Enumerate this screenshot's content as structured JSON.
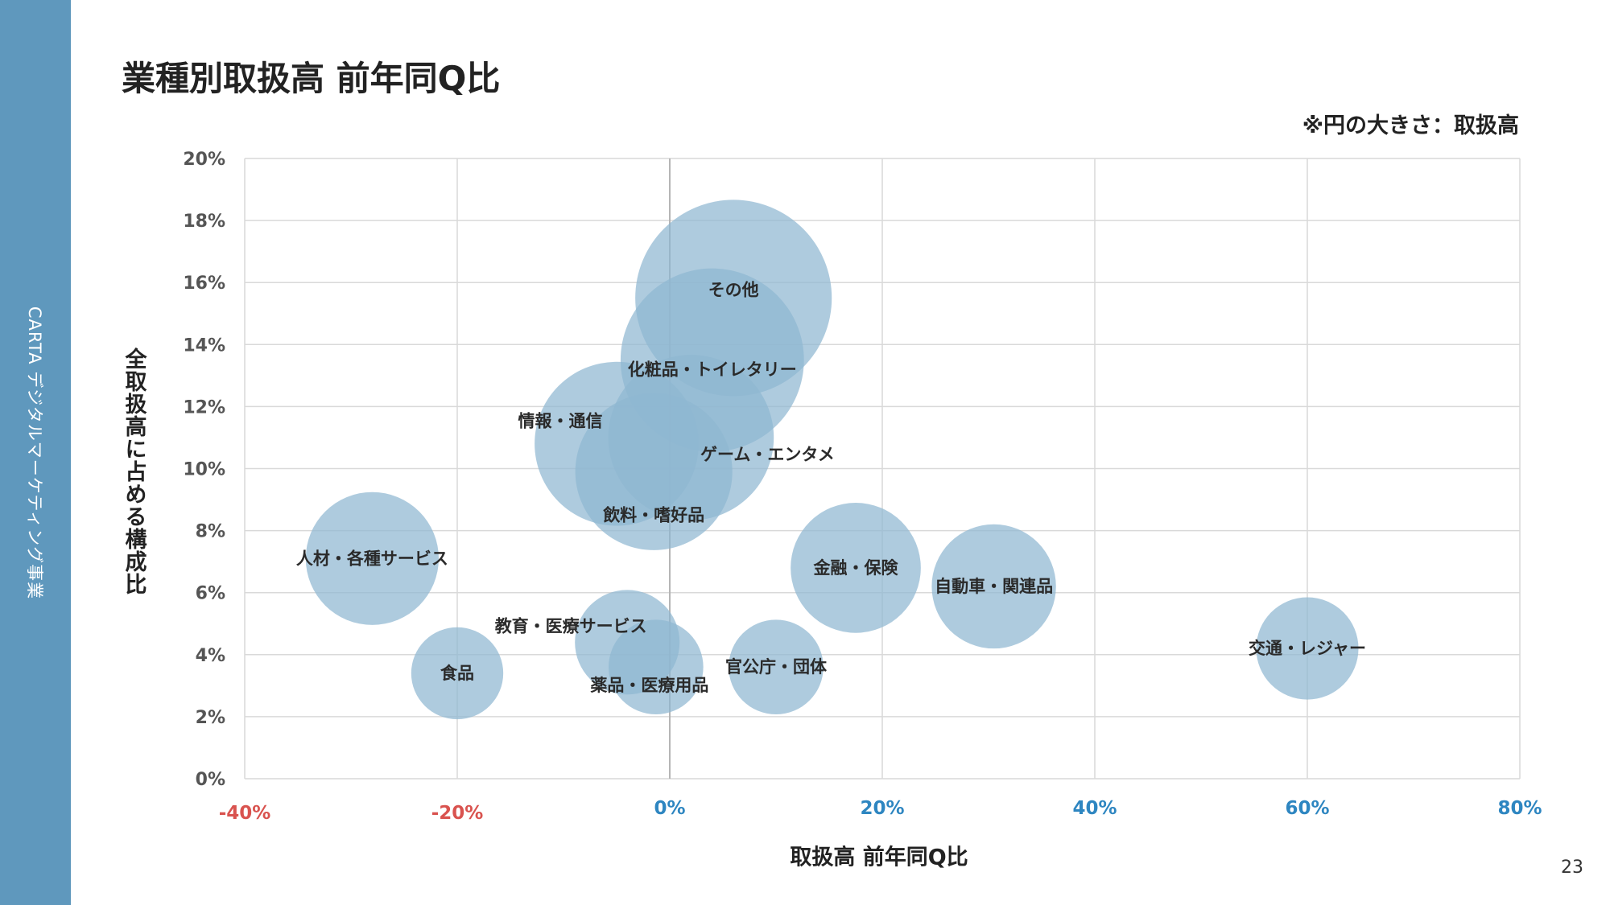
{
  "sidebar": {
    "text": "CARTA デジタルマーケティング事業"
  },
  "page_number": "23",
  "note": "※円の大きさ：取扱高",
  "colors": {
    "sidebar": "#5f98bd",
    "bubble": "#8fb7d1",
    "grid": "#d9d9d9",
    "negative_tick": "#d9534f",
    "positive_tick": "#2e86c1"
  },
  "chart_data": {
    "type": "scatter",
    "title": "業種別取扱高 前年同Q比",
    "xlabel": "取扱高 前年同Q比",
    "ylabel": "全取扱高に占める構成比",
    "xlim": [
      -40,
      80
    ],
    "ylim": [
      0,
      20
    ],
    "x_ticks": [
      "-40%",
      "-20%",
      "0%",
      "20%",
      "40%",
      "60%",
      "80%"
    ],
    "y_ticks": [
      "0%",
      "2%",
      "4%",
      "6%",
      "8%",
      "10%",
      "12%",
      "14%",
      "16%",
      "18%",
      "20%"
    ],
    "grid": true,
    "size_encodes": "取扱高",
    "points": [
      {
        "label": "その他",
        "x": 6,
        "y": 15.5,
        "size": 15.5
      },
      {
        "label": "化粧品・トイレタリー",
        "x": 4,
        "y": 13.5,
        "size": 13.5
      },
      {
        "label": "情報・通信",
        "x": -5,
        "y": 10.8,
        "size": 10.8
      },
      {
        "label": "ゲーム・エンタメ",
        "x": 2,
        "y": 11,
        "size": 11
      },
      {
        "label": "飲料・嗜好品",
        "x": -1.5,
        "y": 9.9,
        "size": 9.9
      },
      {
        "label": "人材・各種サービス",
        "x": -28,
        "y": 7.1,
        "size": 7.1
      },
      {
        "label": "金融・保険",
        "x": 17.5,
        "y": 6.8,
        "size": 6.8
      },
      {
        "label": "自動車・関連品",
        "x": 30.5,
        "y": 6.2,
        "size": 6.2
      },
      {
        "label": "教育・医療サービス",
        "x": -4,
        "y": 4.4,
        "size": 4.4
      },
      {
        "label": "食品",
        "x": -20,
        "y": 3.4,
        "size": 3.4
      },
      {
        "label": "薬品・医療用品",
        "x": -1.3,
        "y": 3.6,
        "size": 3.6
      },
      {
        "label": "官公庁・団体",
        "x": 10,
        "y": 3.6,
        "size": 3.6
      },
      {
        "label": "交通・レジャー",
        "x": 60,
        "y": 4.2,
        "size": 4.2
      }
    ]
  }
}
